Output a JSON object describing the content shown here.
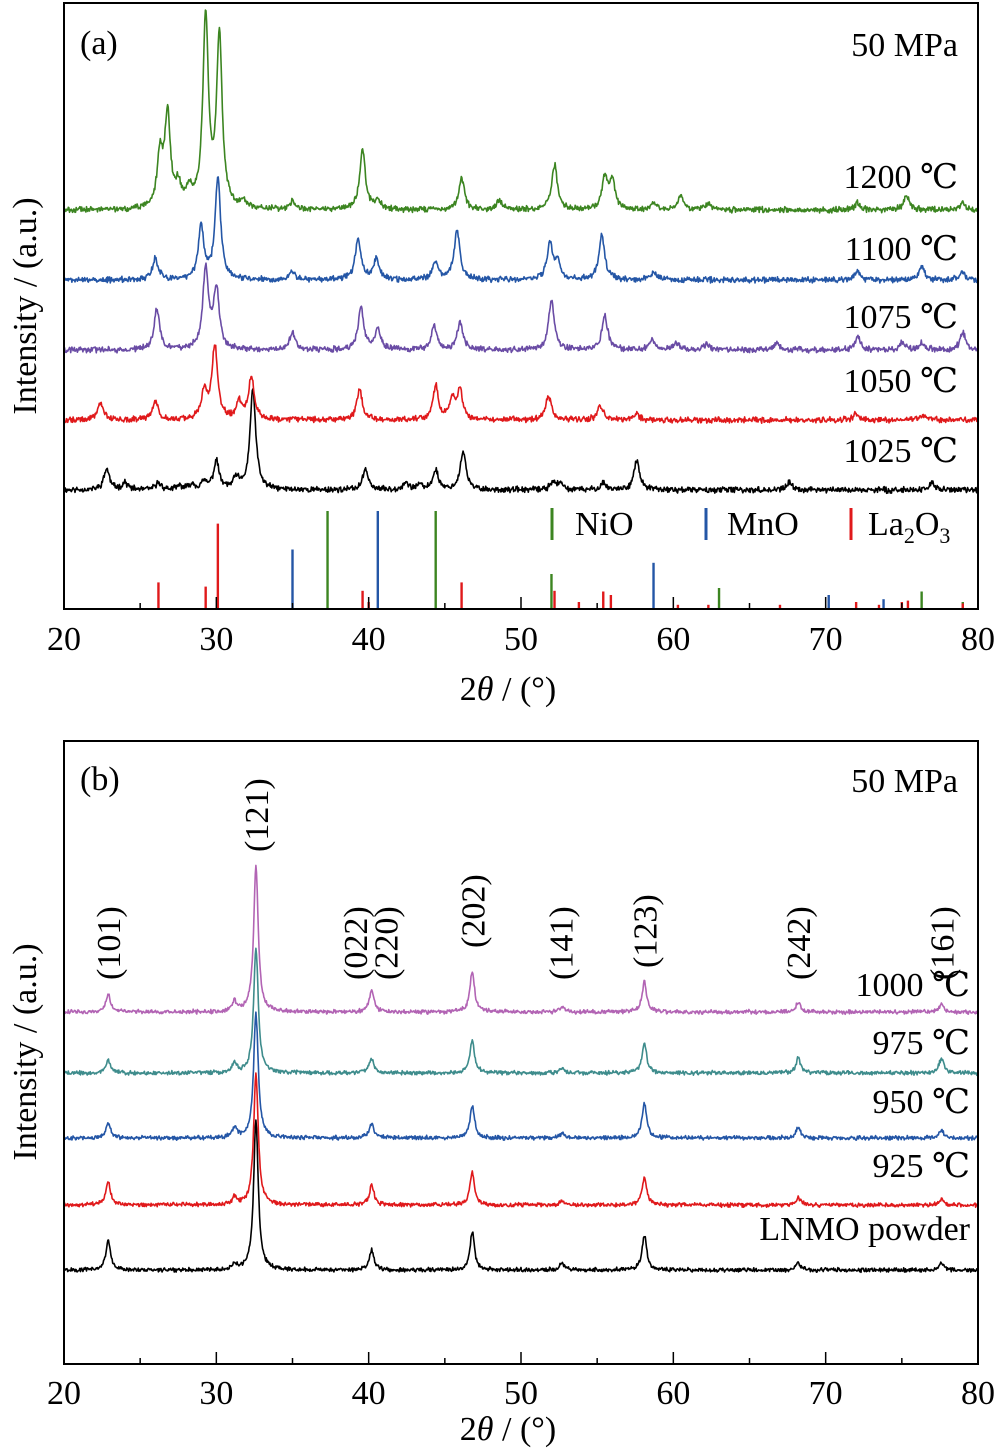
{
  "chart_data": [
    {
      "type": "line",
      "panel_label": "(a)",
      "annotation": "50 MPa",
      "xlabel_prefix": "2",
      "xlabel_symbol": "θ",
      "xlabel_suffix": " / (°)",
      "ylabel": "Intensity / (a.u.)",
      "xlim": [
        20,
        80
      ],
      "x_ticks": [
        20,
        30,
        40,
        50,
        60,
        70,
        80
      ],
      "y_ticks": "none",
      "series": [
        {
          "name": "1025 ℃",
          "color": "#000000",
          "peaks": [
            [
              22.8,
              0.3
            ],
            [
              24.0,
              0.1
            ],
            [
              26.2,
              0.1
            ],
            [
              27.6,
              0.05
            ],
            [
              28.4,
              0.08
            ],
            [
              29.2,
              0.1
            ],
            [
              30.0,
              0.4
            ],
            [
              31.3,
              0.15
            ],
            [
              32.4,
              1.45
            ],
            [
              39.8,
              0.3
            ],
            [
              42.4,
              0.1
            ],
            [
              43.3,
              0.07
            ],
            [
              44.4,
              0.28
            ],
            [
              46.2,
              0.55
            ],
            [
              52.1,
              0.12
            ],
            [
              52.6,
              0.08
            ],
            [
              55.4,
              0.1
            ],
            [
              57.6,
              0.42
            ],
            [
              67.6,
              0.1
            ],
            [
              77.0,
              0.1
            ]
          ]
        },
        {
          "name": "1050 ℃",
          "color": "#e0191b",
          "peaks": [
            [
              22.4,
              0.25
            ],
            [
              26.0,
              0.25
            ],
            [
              29.2,
              0.4
            ],
            [
              29.9,
              1.05
            ],
            [
              31.5,
              0.25
            ],
            [
              32.3,
              0.6
            ],
            [
              39.4,
              0.42
            ],
            [
              44.4,
              0.48
            ],
            [
              45.5,
              0.3
            ],
            [
              46.0,
              0.4
            ],
            [
              51.8,
              0.35
            ],
            [
              55.2,
              0.2
            ],
            [
              57.6,
              0.08
            ],
            [
              72.0,
              0.08
            ],
            [
              76.4,
              0.08
            ]
          ]
        },
        {
          "name": "1075 ℃",
          "color": "#6a4ca5",
          "peaks": [
            [
              26.1,
              0.58
            ],
            [
              29.3,
              1.15
            ],
            [
              30.0,
              0.85
            ],
            [
              35.0,
              0.25
            ],
            [
              39.5,
              0.6
            ],
            [
              40.6,
              0.3
            ],
            [
              44.3,
              0.35
            ],
            [
              46.0,
              0.4
            ],
            [
              52.0,
              0.72
            ],
            [
              55.5,
              0.5
            ],
            [
              58.6,
              0.15
            ],
            [
              60.2,
              0.1
            ],
            [
              62.2,
              0.08
            ],
            [
              66.8,
              0.1
            ],
            [
              72.1,
              0.18
            ],
            [
              75.0,
              0.1
            ],
            [
              76.3,
              0.1
            ],
            [
              79.0,
              0.25
            ]
          ]
        },
        {
          "name": "1100 ℃",
          "color": "#2456a6",
          "peaks": [
            [
              26.0,
              0.3
            ],
            [
              29.0,
              0.75
            ],
            [
              30.1,
              1.45
            ],
            [
              35.0,
              0.12
            ],
            [
              39.3,
              0.6
            ],
            [
              40.5,
              0.3
            ],
            [
              44.4,
              0.25
            ],
            [
              45.8,
              0.72
            ],
            [
              51.9,
              0.5
            ],
            [
              52.4,
              0.25
            ],
            [
              55.3,
              0.65
            ],
            [
              58.7,
              0.12
            ],
            [
              72.1,
              0.12
            ],
            [
              76.3,
              0.2
            ],
            [
              79.0,
              0.1
            ]
          ]
        },
        {
          "name": "1200 ℃",
          "color": "#3c8521",
          "peaks": [
            [
              26.3,
              0.75
            ],
            [
              26.8,
              1.3
            ],
            [
              27.5,
              0.3
            ],
            [
              28.2,
              0.25
            ],
            [
              29.3,
              2.7
            ],
            [
              30.2,
              2.45
            ],
            [
              31.8,
              0.1
            ],
            [
              35.0,
              0.12
            ],
            [
              39.6,
              0.88
            ],
            [
              40.6,
              0.12
            ],
            [
              46.1,
              0.45
            ],
            [
              48.6,
              0.12
            ],
            [
              52.2,
              0.65
            ],
            [
              55.5,
              0.45
            ],
            [
              56.0,
              0.4
            ],
            [
              58.7,
              0.1
            ],
            [
              60.5,
              0.2
            ],
            [
              62.3,
              0.08
            ],
            [
              72.1,
              0.1
            ],
            [
              75.3,
              0.2
            ],
            [
              79.0,
              0.1
            ]
          ]
        }
      ],
      "series_labels": [
        "1025 ℃",
        "1050 ℃",
        "1075 ℃",
        "1100 ℃",
        "1200 ℃"
      ],
      "reference": [
        {
          "name": "NiO",
          "name_main": "NiO",
          "name_sub": "",
          "name_tail": "",
          "color": "#3c8521",
          "lines": [
            [
              37.3,
              1.4
            ],
            [
              44.4,
              1.4
            ],
            [
              52.0,
              0.5
            ],
            [
              63.0,
              0.3
            ],
            [
              76.3,
              0.25
            ],
            [
              79.0,
              0.1
            ]
          ]
        },
        {
          "name": "MnO",
          "name_main": "MnO",
          "name_sub": "",
          "name_tail": "",
          "color": "#2456a6",
          "lines": [
            [
              35.0,
              0.85
            ],
            [
              40.6,
              1.4
            ],
            [
              58.7,
              0.66
            ],
            [
              70.2,
              0.2
            ],
            [
              73.8,
              0.14
            ]
          ]
        },
        {
          "name": "La2O3",
          "name_main": "La",
          "name_sub": "2",
          "name_tail": "O",
          "name_sub2": "3",
          "color": "#e0191b",
          "lines": [
            [
              26.2,
              0.38
            ],
            [
              29.3,
              0.32
            ],
            [
              30.1,
              1.22
            ],
            [
              39.6,
              0.26
            ],
            [
              40.0,
              0.1
            ],
            [
              46.1,
              0.38
            ],
            [
              52.2,
              0.26
            ],
            [
              53.8,
              0.1
            ],
            [
              55.4,
              0.25
            ],
            [
              55.9,
              0.2
            ],
            [
              60.3,
              0.06
            ],
            [
              62.3,
              0.06
            ],
            [
              67.0,
              0.06
            ],
            [
              72.0,
              0.1
            ],
            [
              73.5,
              0.06
            ],
            [
              75.0,
              0.1
            ],
            [
              75.4,
              0.12
            ],
            [
              79.0,
              0.08
            ]
          ]
        }
      ]
    },
    {
      "type": "line",
      "panel_label": "(b)",
      "annotation": "50 MPa",
      "xlabel_prefix": "2",
      "xlabel_symbol": "θ",
      "xlabel_suffix": " / (°)",
      "ylabel": "Intensity / (a.u.)",
      "xlim": [
        20,
        80
      ],
      "x_ticks": [
        20,
        30,
        40,
        50,
        60,
        70,
        80
      ],
      "y_ticks": "none",
      "series": [
        {
          "name": "LNMO powder",
          "color": "#000000",
          "peaks": [
            [
              22.9,
              0.6
            ],
            [
              31.2,
              0.1
            ],
            [
              32.6,
              3.0
            ],
            [
              40.2,
              0.4
            ],
            [
              46.8,
              0.75
            ],
            [
              52.7,
              0.15
            ],
            [
              58.1,
              0.7
            ],
            [
              68.2,
              0.15
            ],
            [
              77.6,
              0.15
            ]
          ]
        },
        {
          "name": "925 ℃",
          "color": "#e0191b",
          "peaks": [
            [
              22.9,
              0.45
            ],
            [
              31.2,
              0.15
            ],
            [
              32.6,
              2.6
            ],
            [
              40.2,
              0.4
            ],
            [
              46.8,
              0.65
            ],
            [
              52.7,
              0.1
            ],
            [
              58.1,
              0.55
            ],
            [
              68.2,
              0.15
            ],
            [
              77.6,
              0.12
            ]
          ]
        },
        {
          "name": "950 ℃",
          "color": "#2456a6",
          "peaks": [
            [
              22.9,
              0.3
            ],
            [
              31.2,
              0.2
            ],
            [
              32.6,
              2.5
            ],
            [
              40.2,
              0.3
            ],
            [
              46.8,
              0.65
            ],
            [
              52.7,
              0.1
            ],
            [
              58.1,
              0.7
            ],
            [
              68.2,
              0.2
            ],
            [
              77.6,
              0.15
            ]
          ]
        },
        {
          "name": "975 ℃",
          "color": "#3e8c8c",
          "peaks": [
            [
              22.9,
              0.25
            ],
            [
              31.2,
              0.2
            ],
            [
              32.6,
              2.5
            ],
            [
              40.2,
              0.3
            ],
            [
              46.8,
              0.65
            ],
            [
              52.7,
              0.1
            ],
            [
              58.1,
              0.6
            ],
            [
              68.2,
              0.3
            ],
            [
              77.6,
              0.3
            ]
          ]
        },
        {
          "name": "1000 ℃",
          "color": "#b264b4",
          "peaks": [
            [
              22.9,
              0.35
            ],
            [
              31.2,
              0.2
            ],
            [
              32.6,
              2.9
            ],
            [
              40.2,
              0.45
            ],
            [
              46.8,
              0.8
            ],
            [
              52.7,
              0.12
            ],
            [
              58.1,
              0.6
            ],
            [
              68.2,
              0.2
            ],
            [
              77.6,
              0.15
            ]
          ]
        }
      ],
      "series_labels": [
        "LNMO powder",
        "925 ℃",
        "950 ℃",
        "975 ℃",
        "1000 ℃"
      ],
      "hkl_labels": [
        {
          "text": "(101)",
          "x": 22.9
        },
        {
          "text": "(121)",
          "x": 32.6
        },
        {
          "text": "(022)",
          "x": 39.1
        },
        {
          "text": "(220)",
          "x": 41.1
        },
        {
          "text": "(202)",
          "x": 46.8
        },
        {
          "text": "(141)",
          "x": 52.6
        },
        {
          "text": "(123)",
          "x": 58.1
        },
        {
          "text": "(242)",
          "x": 68.2
        },
        {
          "text": "(161)",
          "x": 77.6
        }
      ]
    }
  ]
}
